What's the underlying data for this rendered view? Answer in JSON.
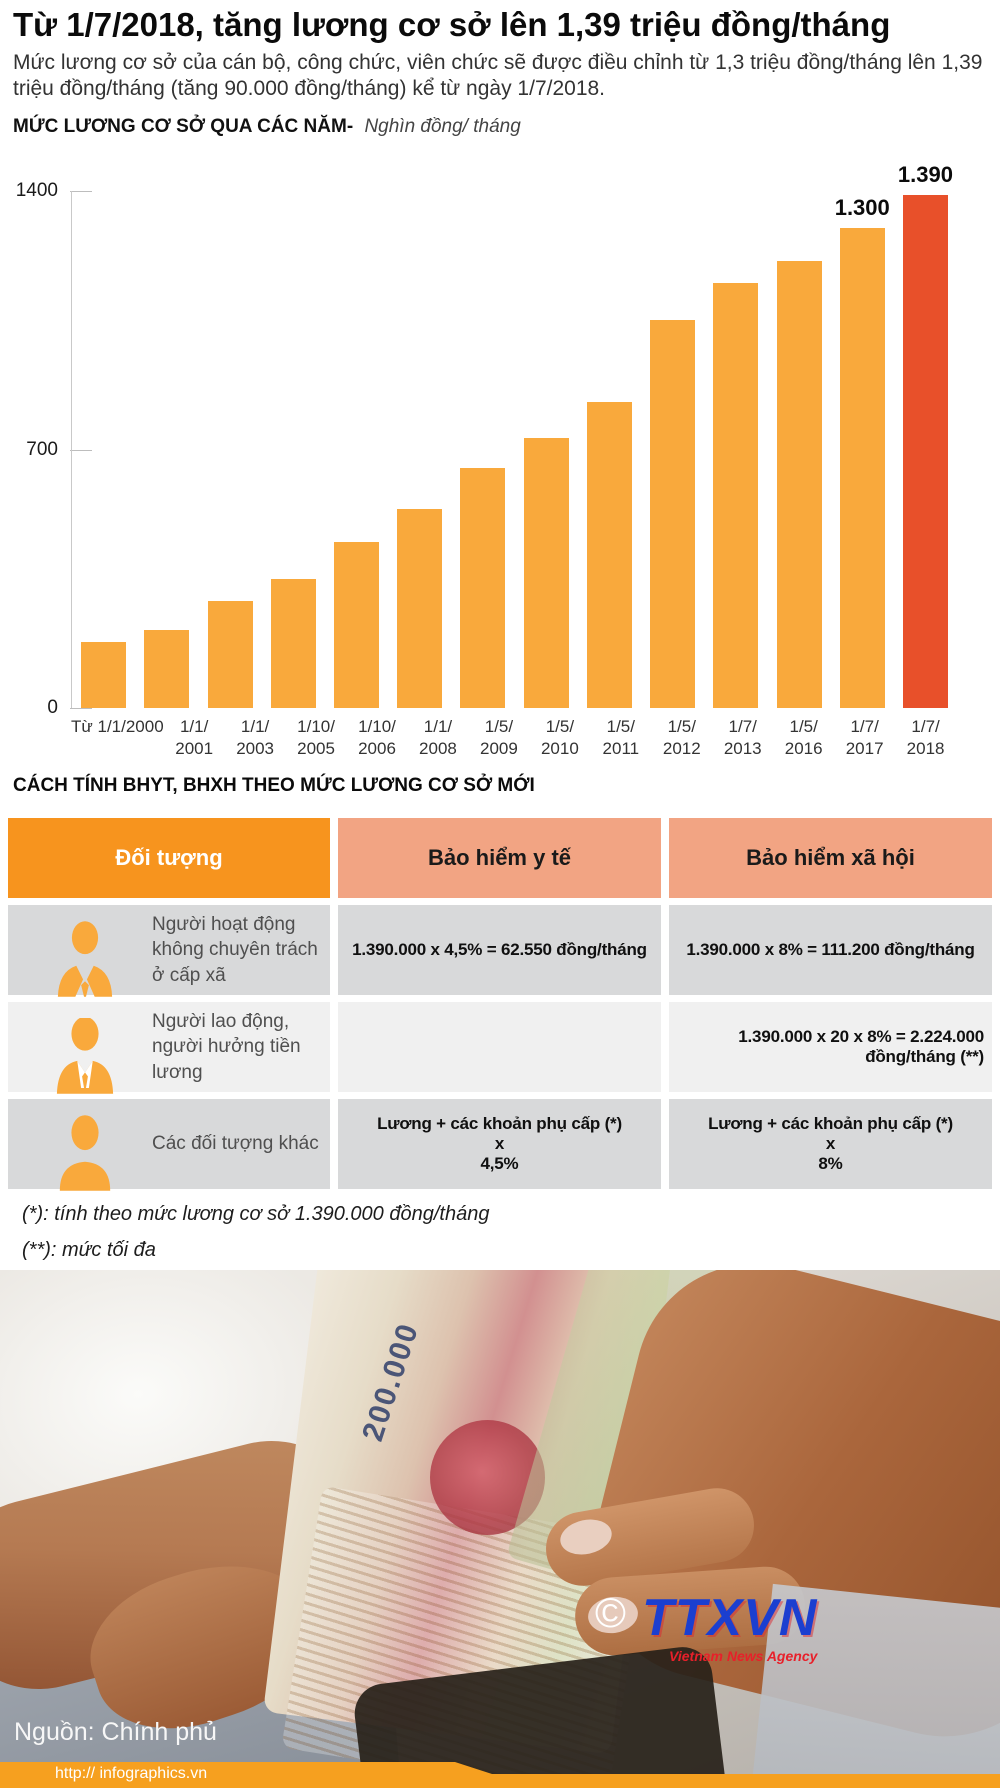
{
  "header": {
    "title": "Từ 1/7/2018, tăng lương cơ sở lên 1,39 triệu đồng/tháng",
    "subtitle": "Mức lương cơ sở của cán bộ, công chức, viên chức sẽ được điều chỉnh từ 1,3 triệu đồng/tháng lên 1,39 triệu đồng/tháng (tăng 90.000 đồng/tháng) kể từ ngày 1/7/2018."
  },
  "chart": {
    "heading_bold": "MỨC LƯƠNG CƠ SỞ QUA CÁC NĂM-",
    "heading_unit": "Nghìn đồng/ tháng"
  },
  "chart_data": {
    "type": "bar",
    "title": "MỨC LƯƠNG CƠ SỞ QUA CÁC NĂM",
    "unit_label": "Nghìn đồng/ tháng",
    "categories": [
      [
        "Từ 1/1/2000"
      ],
      [
        "1/1/",
        "2001"
      ],
      [
        "1/1/",
        "2003"
      ],
      [
        "1/10/",
        "2005"
      ],
      [
        "1/10/",
        "2006"
      ],
      [
        "1/1/",
        "2008"
      ],
      [
        "1/5/",
        "2009"
      ],
      [
        "1/5/",
        "2010"
      ],
      [
        "1/5/",
        "2011"
      ],
      [
        "1/5/",
        "2012"
      ],
      [
        "1/7/",
        "2013"
      ],
      [
        "1/5/",
        "2016"
      ],
      [
        "1/7/",
        "2017"
      ],
      [
        "1/7/",
        "2018"
      ]
    ],
    "values": [
      180,
      210,
      290,
      350,
      450,
      540,
      650,
      730,
      830,
      1050,
      1150,
      1210,
      1300,
      1390
    ],
    "ylim": [
      0,
      1400
    ],
    "yticks": [
      1400,
      700,
      0
    ],
    "data_labels": {
      "12": "1.300",
      "13": "1.390"
    },
    "bar_color": "#F9A93C",
    "highlight_color": "#E8502A",
    "highlight_index": 13,
    "grid": false,
    "legend": false
  },
  "table": {
    "section_title": "CÁCH TÍNH BHYT, BHXH THEO MỨC LƯƠNG CƠ SỞ MỚI",
    "headers": [
      "Đối tượng",
      "Bảo hiểm y tế",
      "Bảo hiểm xã hội"
    ],
    "rows": [
      {
        "icon": "official-person-icon",
        "label": "Người hoạt động không chuyên trách ở cấp xã",
        "bhyt": "1.390.000 x 4,5% = 62.550 đồng/tháng",
        "bhxh": "1.390.000 x 8% = 111.200 đồng/tháng"
      },
      {
        "icon": "worker-person-icon",
        "label": "Người lao động, người hưởng tiền lương",
        "bhyt": "",
        "bhxh": [
          "1.390.000 x 20 x 8% = 2.224.000",
          "đồng/tháng (**)"
        ]
      },
      {
        "icon": "person-icon",
        "label": "Các đối tượng khác",
        "bhyt": [
          "Lương + các khoản phụ cấp (*)",
          "x",
          "4,5%"
        ],
        "bhxh": [
          "Lương + các khoản phụ cấp (*)",
          "x",
          "8%"
        ]
      }
    ]
  },
  "footnotes": {
    "f1": "(*): tính theo mức lương cơ sở 1.390.000 đồng/tháng",
    "f2": "(**): mức tối đa"
  },
  "footer": {
    "source": "Nguồn: Chính phủ",
    "url": "http:// infographics.vn",
    "copyright": "©",
    "logo_name": "TTXVN",
    "logo_tagline": "Vietnam News Agency",
    "banknote_text": "200.000"
  },
  "colors": {
    "bar_orange": "#F9A93C",
    "highlight_red": "#E8502A",
    "table_header_orange": "#F7941E",
    "table_header_salmon": "#F2A483",
    "row_gray": "#D8D9DA",
    "row_light": "#F0F0F0",
    "footer_bar_orange": "#F6A01F",
    "logo_blue": "#1B3FD0",
    "logo_red": "#E8202A"
  }
}
